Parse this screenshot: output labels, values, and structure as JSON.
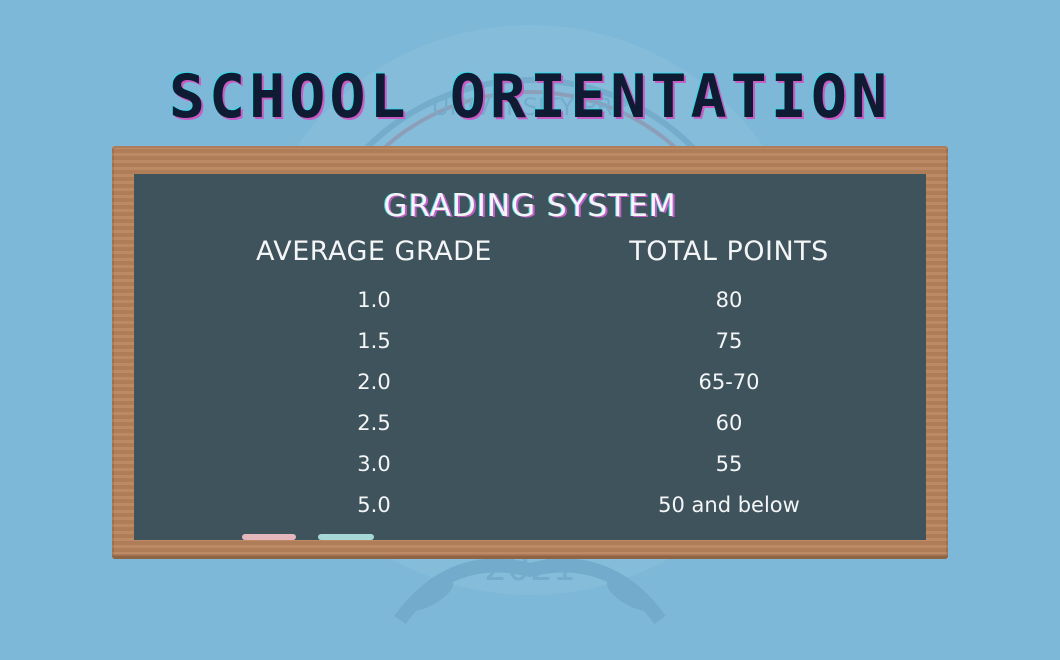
{
  "title": "SCHOOL ORIENTATION",
  "board": {
    "heading": "GRADING SYSTEM",
    "columns": {
      "grade": "AVERAGE GRADE",
      "points": "TOTAL POINTS"
    },
    "rows": [
      {
        "grade": "1.0",
        "points": "80"
      },
      {
        "grade": "1.5",
        "points": "75"
      },
      {
        "grade": "2.0",
        "points": "65-70"
      },
      {
        "grade": "2.5",
        "points": "60"
      },
      {
        "grade": "3.0",
        "points": "55"
      },
      {
        "grade": "5.0",
        "points": "50 and below"
      }
    ]
  },
  "watermark": {
    "text_top": "UNIVERSITY PRE",
    "year": "· 2021 ·"
  },
  "colors": {
    "background": "#7db8d8",
    "chalkboard": "#3f535c",
    "frame": "#b8855e",
    "title_text": "#0f1a33",
    "accent_pink": "#c85cc4",
    "accent_cyan": "#3ad8e6",
    "chalk_pink": "#e5b6bb",
    "chalk_teal": "#a7d8d8"
  }
}
